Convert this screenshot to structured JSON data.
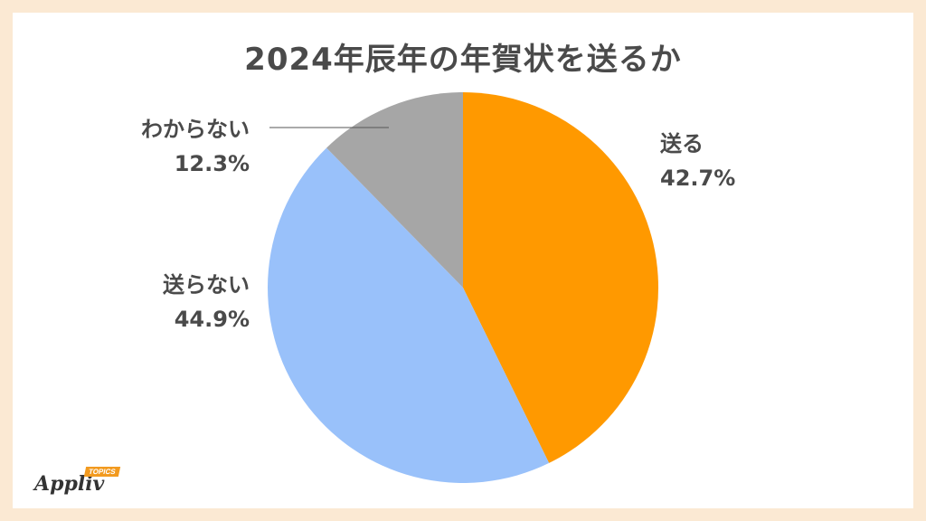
{
  "chart_data": {
    "type": "pie",
    "title": "2024年辰年の年賀状を送るか",
    "slices": [
      {
        "label": "送る",
        "value": 42.7,
        "value_label": "42.7%",
        "color": "#ff9900"
      },
      {
        "label": "送らない",
        "value": 44.9,
        "value_label": "44.9%",
        "color": "#99c1fa"
      },
      {
        "label": "わからない",
        "value": 12.3,
        "value_label": "12.3%",
        "color": "#a6a6a6"
      }
    ],
    "start": "12 o'clock",
    "direction": "clockwise"
  },
  "logo": {
    "name": "Appliv",
    "badge": "TOPICS"
  }
}
